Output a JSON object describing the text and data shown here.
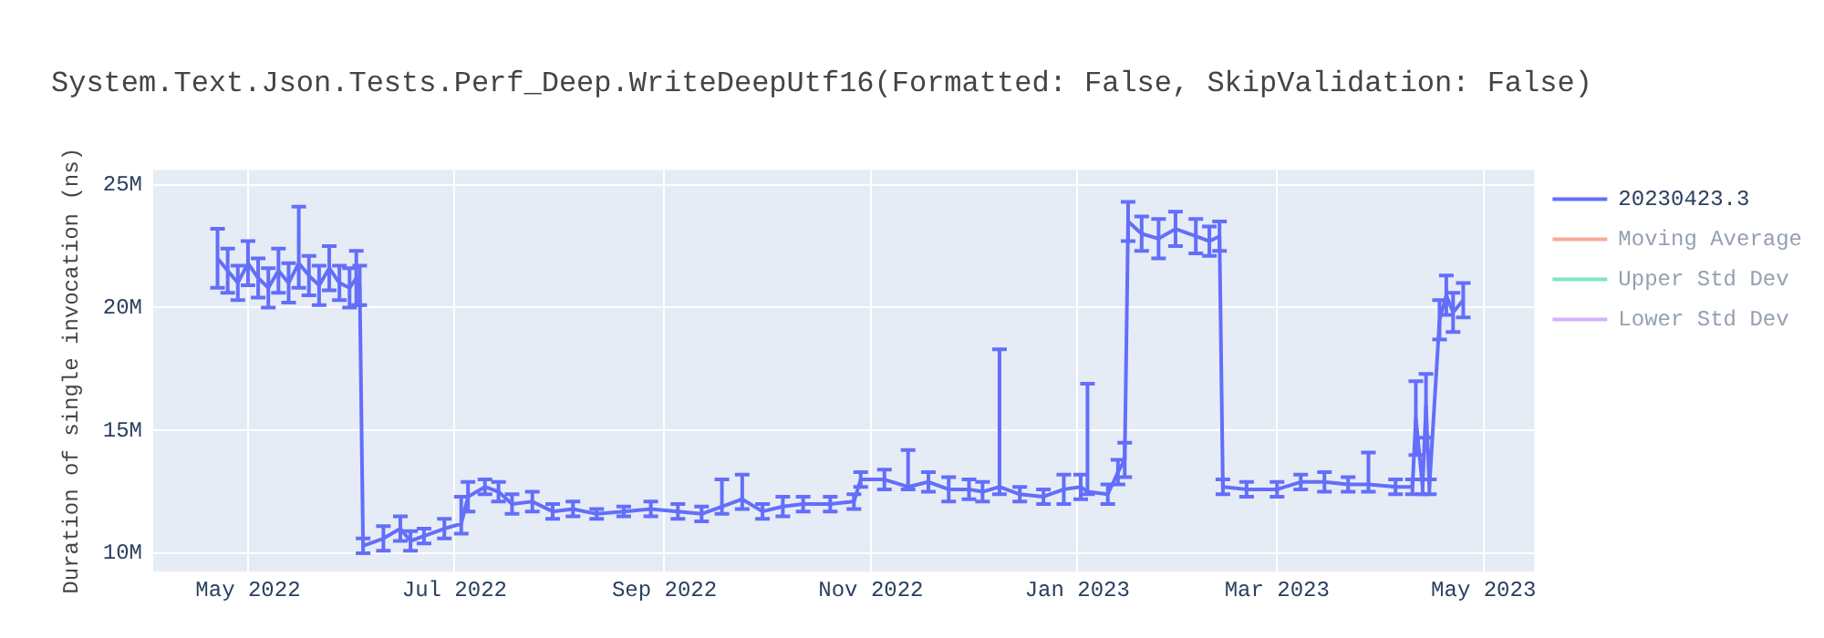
{
  "chart_data": {
    "type": "line",
    "title": "System.Text.Json.Tests.Perf_Deep.WriteDeepUtf16(Formatted: False, SkipValidation: False)",
    "ylabel": "Duration of single invocation (ns)",
    "x": [
      "2022-04-22",
      "2022-04-25",
      "2022-04-28",
      "2022-05-01",
      "2022-05-04",
      "2022-05-07",
      "2022-05-10",
      "2022-05-13",
      "2022-05-16",
      "2022-05-19",
      "2022-05-22",
      "2022-05-25",
      "2022-05-28",
      "2022-05-31",
      "2022-06-02",
      "2022-06-03",
      "2022-06-04",
      "2022-06-10",
      "2022-06-15",
      "2022-06-18",
      "2022-06-22",
      "2022-06-28",
      "2022-07-03",
      "2022-07-05",
      "2022-07-10",
      "2022-07-14",
      "2022-07-18",
      "2022-07-24",
      "2022-07-30",
      "2022-08-05",
      "2022-08-12",
      "2022-08-20",
      "2022-08-28",
      "2022-09-05",
      "2022-09-12",
      "2022-09-18",
      "2022-09-24",
      "2022-09-30",
      "2022-10-06",
      "2022-10-12",
      "2022-10-20",
      "2022-10-27",
      "2022-10-29",
      "2022-11-05",
      "2022-11-12",
      "2022-11-18",
      "2022-11-24",
      "2022-11-30",
      "2022-12-04",
      "2022-12-09",
      "2022-12-15",
      "2022-12-22",
      "2022-12-28",
      "2023-01-02",
      "2023-01-04",
      "2023-01-10",
      "2023-01-13",
      "2023-01-15",
      "2023-01-16",
      "2023-01-20",
      "2023-01-25",
      "2023-01-30",
      "2023-02-05",
      "2023-02-09",
      "2023-02-12",
      "2023-02-13",
      "2023-02-20",
      "2023-03-01",
      "2023-03-08",
      "2023-03-15",
      "2023-03-22",
      "2023-03-28",
      "2023-04-05",
      "2023-04-10",
      "2023-04-11",
      "2023-04-13",
      "2023-04-14",
      "2023-04-15",
      "2023-04-18",
      "2023-04-20",
      "2023-04-22",
      "2023-04-25"
    ],
    "series": [
      {
        "name": "20230423.3",
        "color": "#636efa",
        "values": [
          22000000,
          21500000,
          21000000,
          21800000,
          21200000,
          20800000,
          21500000,
          21000000,
          21800000,
          21300000,
          20900000,
          21600000,
          21000000,
          20800000,
          21200000,
          20900000,
          10300000,
          10600000,
          11000000,
          10500000,
          10700000,
          11000000,
          11200000,
          12300000,
          12700000,
          12500000,
          12000000,
          12100000,
          11700000,
          11800000,
          11600000,
          11700000,
          11800000,
          11700000,
          11600000,
          11900000,
          12200000,
          11700000,
          11900000,
          12000000,
          12000000,
          12100000,
          13000000,
          13000000,
          12700000,
          12900000,
          12600000,
          12600000,
          12500000,
          12700000,
          12400000,
          12300000,
          12600000,
          12700000,
          12500000,
          12400000,
          13300000,
          13800000,
          23500000,
          23000000,
          22800000,
          23200000,
          22900000,
          22700000,
          22900000,
          12700000,
          12600000,
          12600000,
          12900000,
          12900000,
          12800000,
          12800000,
          12700000,
          12700000,
          15500000,
          12700000,
          16000000,
          12700000,
          19500000,
          20500000,
          19800000,
          20300000
        ],
        "errors": [
          1200000,
          900000,
          700000,
          900000,
          800000,
          800000,
          900000,
          800000,
          [
            20800000,
            24100000
          ],
          800000,
          800000,
          900000,
          700000,
          800000,
          1100000,
          800000,
          300000,
          500000,
          500000,
          400000,
          300000,
          400000,
          [
            10800000,
            12300000
          ],
          600000,
          300000,
          400000,
          400000,
          400000,
          300000,
          300000,
          200000,
          200000,
          300000,
          300000,
          300000,
          [
            11600000,
            13000000
          ],
          [
            11800000,
            13200000
          ],
          300000,
          400000,
          300000,
          300000,
          300000,
          300000,
          400000,
          [
            12600000,
            14200000
          ],
          400000,
          500000,
          400000,
          400000,
          [
            12400000,
            18300000
          ],
          300000,
          300000,
          600000,
          500000,
          [
            12400000,
            16900000
          ],
          400000,
          500000,
          700000,
          800000,
          700000,
          800000,
          700000,
          700000,
          600000,
          600000,
          300000,
          300000,
          300000,
          300000,
          400000,
          300000,
          [
            12500000,
            14100000
          ],
          300000,
          300000,
          1500000,
          300000,
          1300000,
          300000,
          800000,
          800000,
          800000,
          700000
        ]
      },
      {
        "name": "Moving Average",
        "color": "#ef553b",
        "values": [
          null,
          null,
          null,
          null,
          null,
          null,
          null,
          null,
          null,
          null,
          null,
          null,
          null,
          null,
          null,
          null,
          null,
          null,
          null,
          null,
          null,
          null,
          null,
          null,
          null,
          null,
          null,
          null,
          null,
          null,
          null,
          null,
          null,
          null,
          null,
          null,
          null,
          null,
          null,
          null,
          null,
          null,
          null,
          null,
          null,
          null,
          null,
          null,
          null,
          null,
          null,
          null,
          null,
          null,
          null,
          null,
          null,
          null,
          null,
          null,
          null,
          null,
          null,
          null,
          null,
          null,
          null,
          null,
          null,
          null,
          null,
          null,
          null,
          null,
          null,
          null,
          null,
          null,
          null,
          null,
          null,
          null
        ]
      },
      {
        "name": "Upper Std Dev",
        "color": "#00cc96",
        "values": [
          null,
          null,
          null,
          null,
          null,
          null,
          null,
          null,
          null,
          null,
          null,
          null,
          null,
          null,
          null,
          null,
          null,
          null,
          null,
          null,
          null,
          null,
          null,
          null,
          null,
          null,
          null,
          null,
          null,
          null,
          null,
          null,
          null,
          null,
          null,
          null,
          null,
          null,
          null,
          null,
          null,
          null,
          null,
          null,
          null,
          null,
          null,
          null,
          null,
          null,
          null,
          null,
          null,
          null,
          null,
          null,
          null,
          null,
          null,
          null,
          null,
          null,
          null,
          null,
          null,
          null,
          null,
          null,
          null,
          null,
          null,
          null,
          null,
          null,
          null,
          null,
          null,
          null,
          null,
          null,
          null,
          null
        ]
      },
      {
        "name": "Lower Std Dev",
        "color": "#ab63fa",
        "values": [
          null,
          null,
          null,
          null,
          null,
          null,
          null,
          null,
          null,
          null,
          null,
          null,
          null,
          null,
          null,
          null,
          null,
          null,
          null,
          null,
          null,
          null,
          null,
          null,
          null,
          null,
          null,
          null,
          null,
          null,
          null,
          null,
          null,
          null,
          null,
          null,
          null,
          null,
          null,
          null,
          null,
          null,
          null,
          null,
          null,
          null,
          null,
          null,
          null,
          null,
          null,
          null,
          null,
          null,
          null,
          null,
          null,
          null,
          null,
          null,
          null,
          null,
          null,
          null,
          null,
          null,
          null,
          null,
          null,
          null,
          null,
          null,
          null,
          null,
          null,
          null,
          null,
          null,
          null,
          null,
          null,
          null
        ]
      }
    ],
    "xlim": [
      "2022-04-03",
      "2023-05-16"
    ],
    "xticks": [
      {
        "value": "2022-05-01",
        "label": "May 2022"
      },
      {
        "value": "2022-07-01",
        "label": "Jul 2022"
      },
      {
        "value": "2022-09-01",
        "label": "Sep 2022"
      },
      {
        "value": "2022-11-01",
        "label": "Nov 2022"
      },
      {
        "value": "2023-01-01",
        "label": "Jan 2023"
      },
      {
        "value": "2023-03-01",
        "label": "Mar 2023"
      },
      {
        "value": "2023-05-01",
        "label": "May 2023"
      }
    ],
    "ylim": [
      9250000,
      25600000
    ],
    "yticks": [
      {
        "value": 10000000,
        "label": "10M"
      },
      {
        "value": 15000000,
        "label": "15M"
      },
      {
        "value": 20000000,
        "label": "20M"
      },
      {
        "value": 25000000,
        "label": "25M"
      }
    ],
    "grid": true,
    "legend": "top right",
    "marker": "none",
    "line_style": "solid"
  }
}
